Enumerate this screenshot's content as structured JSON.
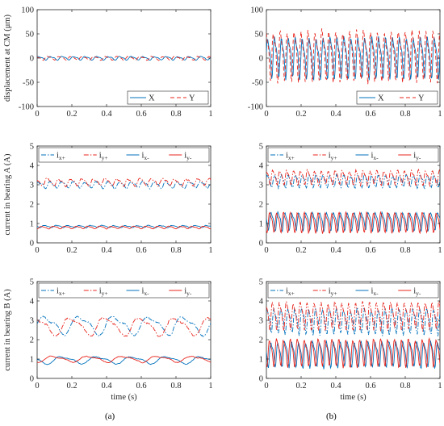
{
  "figure": {
    "panel_labels": [
      "(a)",
      "(b)"
    ],
    "xlabel": "time (s)"
  },
  "colors": {
    "blue": "#0072BD",
    "red": "#E8261E",
    "axis": "#262626"
  },
  "chart_data": [
    {
      "id": "a-disp",
      "type": "line",
      "ylabel": "displacement at CM (μm)",
      "xlabel": "",
      "xlim": [
        0,
        1
      ],
      "ylim": [
        -100,
        100
      ],
      "xticks": [
        0,
        0.2,
        0.4,
        0.6,
        0.8,
        1
      ],
      "xtick_labels": [
        "0",
        "0.2",
        "0.4",
        "0.6",
        "0.8",
        "1"
      ],
      "yticks": [
        -100,
        -50,
        0,
        50,
        100
      ],
      "ytick_labels": [
        "-100",
        "-50",
        "0",
        "50",
        "100"
      ],
      "legend": "bottom-right",
      "legend_cols": 2,
      "grid": false,
      "series": [
        {
          "name": "X",
          "color": "blue",
          "dash": "solid",
          "mean": 0,
          "amp": 4,
          "freq": 15,
          "phase": 0.3,
          "noise": 1.2,
          "seed": 11
        },
        {
          "name": "Y",
          "color": "red",
          "dash": "dashed",
          "mean": 0,
          "amp": 4,
          "freq": 15,
          "phase": 1.8,
          "noise": 1.2,
          "seed": 12
        }
      ]
    },
    {
      "id": "b-disp",
      "type": "line",
      "ylabel": "",
      "xlabel": "",
      "xlim": [
        0,
        1
      ],
      "ylim": [
        -100,
        100
      ],
      "xticks": [
        0,
        0.2,
        0.4,
        0.6,
        0.8,
        1
      ],
      "xtick_labels": [
        "0",
        "0.2",
        "0.4",
        "0.6",
        "0.8",
        "1"
      ],
      "yticks": [
        -100,
        -50,
        0,
        50,
        100
      ],
      "ytick_labels": [
        "-100",
        "-50",
        "0",
        "50",
        "100"
      ],
      "legend": "bottom-right",
      "legend_cols": 2,
      "grid": false,
      "series": [
        {
          "name": "X",
          "color": "blue",
          "dash": "solid",
          "mean": 5,
          "amp": 45,
          "freq": 25,
          "phase": 0.0,
          "noise": 6,
          "seed": 21
        },
        {
          "name": "Y",
          "color": "red",
          "dash": "dashed",
          "mean": 10,
          "amp": 55,
          "freq": 25,
          "phase": 1.1,
          "noise": 8,
          "seed": 22
        }
      ]
    },
    {
      "id": "a-bearingA",
      "type": "line",
      "ylabel": "current in bearing A (A)",
      "xlabel": "",
      "xlim": [
        0,
        1
      ],
      "ylim": [
        0,
        5
      ],
      "xticks": [
        0,
        0.2,
        0.4,
        0.6,
        0.8,
        1
      ],
      "xtick_labels": [
        "0",
        "0.2",
        "0.4",
        "0.6",
        "0.8",
        "1"
      ],
      "yticks": [
        0,
        1,
        2,
        3,
        4,
        5
      ],
      "ytick_labels": [
        "0",
        "1",
        "2",
        "3",
        "4",
        "5"
      ],
      "legend": "top",
      "legend_cols": 4,
      "grid": false,
      "series": [
        {
          "name": "i",
          "sub": "x+",
          "color": "blue",
          "dash": "dashdot",
          "mean": 3.0,
          "amp": 0.18,
          "freq": 15,
          "phase": 0.4,
          "noise": 0.08,
          "seed": 31
        },
        {
          "name": "i",
          "sub": "y+",
          "color": "red",
          "dash": "dashdot",
          "mean": 3.15,
          "amp": 0.2,
          "freq": 15,
          "phase": 2.0,
          "noise": 0.08,
          "seed": 32
        },
        {
          "name": "i",
          "sub": "x-",
          "color": "blue",
          "dash": "solid",
          "mean": 0.85,
          "amp": 0.06,
          "freq": 15,
          "phase": 3.5,
          "noise": 0.03,
          "seed": 33
        },
        {
          "name": "i",
          "sub": "y-",
          "color": "red",
          "dash": "solid",
          "mean": 0.8,
          "amp": 0.07,
          "freq": 15,
          "phase": 5.0,
          "noise": 0.03,
          "seed": 34
        }
      ]
    },
    {
      "id": "b-bearingA",
      "type": "line",
      "ylabel": "",
      "xlabel": "",
      "xlim": [
        0,
        1
      ],
      "ylim": [
        0,
        5
      ],
      "xticks": [
        0,
        0.2,
        0.4,
        0.6,
        0.8,
        1
      ],
      "xtick_labels": [
        "0",
        "0.2",
        "0.4",
        "0.6",
        "0.8",
        "1"
      ],
      "yticks": [
        0,
        1,
        2,
        3,
        4,
        5
      ],
      "ytick_labels": [
        "0",
        "1",
        "2",
        "3",
        "4",
        "5"
      ],
      "legend": "top",
      "legend_cols": 4,
      "grid": false,
      "series": [
        {
          "name": "i",
          "sub": "x+",
          "color": "blue",
          "dash": "dashdot",
          "mean": 3.2,
          "amp": 0.35,
          "freq": 25,
          "phase": 0.2,
          "noise": 0.1,
          "seed": 41
        },
        {
          "name": "i",
          "sub": "y+",
          "color": "red",
          "dash": "dashdot",
          "mean": 3.4,
          "amp": 0.4,
          "freq": 25,
          "phase": 1.6,
          "noise": 0.1,
          "seed": 42
        },
        {
          "name": "i",
          "sub": "x-",
          "color": "blue",
          "dash": "solid",
          "mean": 1.15,
          "amp": 0.5,
          "freq": 25,
          "phase": 3.2,
          "noise": 0.08,
          "seed": 43
        },
        {
          "name": "i",
          "sub": "y-",
          "color": "red",
          "dash": "solid",
          "mean": 1.1,
          "amp": 0.55,
          "freq": 25,
          "phase": 4.4,
          "noise": 0.08,
          "seed": 44
        }
      ]
    },
    {
      "id": "a-bearingB",
      "type": "line",
      "ylabel": "current in bearing B (A)",
      "xlabel": "time (s)",
      "xlim": [
        0,
        1
      ],
      "ylim": [
        0,
        5
      ],
      "xticks": [
        0,
        0.2,
        0.4,
        0.6,
        0.8,
        1
      ],
      "xtick_labels": [
        "0",
        "0.2",
        "0.4",
        "0.6",
        "0.8",
        "1"
      ],
      "yticks": [
        0,
        1,
        2,
        3,
        4,
        5
      ],
      "ytick_labels": [
        "0",
        "1",
        "2",
        "3",
        "4",
        "5"
      ],
      "legend": "top",
      "legend_cols": 4,
      "grid": false,
      "series": [
        {
          "name": "i",
          "sub": "x+",
          "color": "blue",
          "dash": "dashdot",
          "mean": 2.75,
          "amp": 0.5,
          "freq": 5,
          "phase": 0.0,
          "noise": 0.1,
          "seed": 51
        },
        {
          "name": "i",
          "sub": "y+",
          "color": "red",
          "dash": "dashdot",
          "mean": 2.7,
          "amp": 0.5,
          "freq": 5,
          "phase": 1.6,
          "noise": 0.1,
          "seed": 52
        },
        {
          "name": "i",
          "sub": "x-",
          "color": "blue",
          "dash": "solid",
          "mean": 0.95,
          "amp": 0.2,
          "freq": 5,
          "phase": 3.1,
          "noise": 0.04,
          "seed": 53
        },
        {
          "name": "i",
          "sub": "y-",
          "color": "red",
          "dash": "solid",
          "mean": 1.0,
          "amp": 0.17,
          "freq": 5,
          "phase": 4.7,
          "noise": 0.04,
          "seed": 54
        }
      ]
    },
    {
      "id": "b-bearingB",
      "type": "line",
      "ylabel": "",
      "xlabel": "time (s)",
      "xlim": [
        0,
        1
      ],
      "ylim": [
        0,
        5
      ],
      "xticks": [
        0,
        0.2,
        0.4,
        0.6,
        0.8,
        1
      ],
      "xtick_labels": [
        "0",
        "0.2",
        "0.4",
        "0.6",
        "0.8",
        "1"
      ],
      "yticks": [
        0,
        1,
        2,
        3,
        4,
        5
      ],
      "ytick_labels": [
        "0",
        "1",
        "2",
        "3",
        "4",
        "5"
      ],
      "legend": "top",
      "legend_cols": 4,
      "grid": false,
      "series": [
        {
          "name": "i",
          "sub": "x+",
          "color": "blue",
          "dash": "dashdot",
          "mean": 3.0,
          "amp": 0.7,
          "freq": 25,
          "phase": 0.5,
          "noise": 0.15,
          "seed": 61
        },
        {
          "name": "i",
          "sub": "y+",
          "color": "red",
          "dash": "dashdot",
          "mean": 3.3,
          "amp": 0.75,
          "freq": 25,
          "phase": 1.9,
          "noise": 0.15,
          "seed": 62
        },
        {
          "name": "i",
          "sub": "x-",
          "color": "blue",
          "dash": "solid",
          "mean": 1.3,
          "amp": 0.7,
          "freq": 25,
          "phase": 3.3,
          "noise": 0.12,
          "seed": 63
        },
        {
          "name": "i",
          "sub": "y-",
          "color": "red",
          "dash": "solid",
          "mean": 1.4,
          "amp": 0.75,
          "freq": 25,
          "phase": 4.5,
          "noise": 0.12,
          "seed": 64
        }
      ]
    }
  ]
}
